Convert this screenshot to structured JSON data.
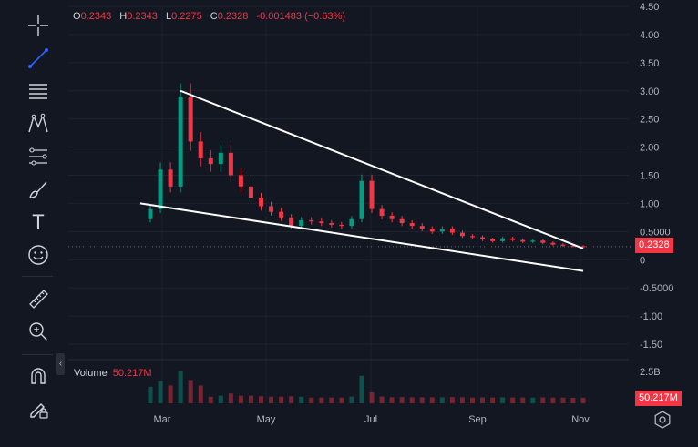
{
  "legend": {
    "open_label": "O",
    "open": "0.2343",
    "high_label": "H",
    "high": "0.2343",
    "low_label": "L",
    "low": "0.2275",
    "close_label": "C",
    "close": "0.2328",
    "change": "-0.001483 (−0.63%)"
  },
  "volume_legend": {
    "label": "Volume",
    "value": "50.217M"
  },
  "price_axis": {
    "ticks": [
      "4.50",
      "4.00",
      "3.50",
      "3.00",
      "2.50",
      "2.00",
      "1.50",
      "1.00",
      "0.5000",
      "0",
      "-0.5000",
      "-1.00",
      "-1.50"
    ]
  },
  "volume_axis": {
    "tick": "2.5B"
  },
  "time_axis": {
    "ticks": [
      "Mar",
      "May",
      "Jul",
      "Sep",
      "Nov"
    ]
  },
  "last_price_label": "0.2328",
  "last_volume_label": "50.217M",
  "toolbar": {
    "tools": [
      "crosshair-icon",
      "trend-line-icon",
      "horizontal-lines-icon",
      "pattern-icon",
      "fib-icon",
      "brush-icon",
      "text-icon",
      "emoji-icon",
      "ruler-icon",
      "zoom-in-icon",
      "magnet-icon",
      "lock-pencil-icon"
    ],
    "text_tool_glyph": "T",
    "collapse_glyph": "‹"
  },
  "chart_data": {
    "type": "candlestick",
    "y_range": [
      -1.5,
      4.5
    ],
    "series_price": [
      {
        "t": 0,
        "c": 0.9
      },
      {
        "t": 1,
        "c": 1.6
      },
      {
        "t": 2,
        "c": 1.3
      },
      {
        "t": 3,
        "c": 2.9
      },
      {
        "t": 4,
        "c": 2.1
      },
      {
        "t": 5,
        "c": 1.8
      },
      {
        "t": 6,
        "c": 1.7
      },
      {
        "t": 7,
        "c": 1.9
      },
      {
        "t": 8,
        "c": 1.5
      },
      {
        "t": 9,
        "c": 1.3
      },
      {
        "t": 10,
        "c": 1.1
      },
      {
        "t": 11,
        "c": 0.95
      },
      {
        "t": 12,
        "c": 0.85
      },
      {
        "t": 13,
        "c": 0.75
      },
      {
        "t": 14,
        "c": 0.6
      },
      {
        "t": 15,
        "c": 0.7
      },
      {
        "t": 16,
        "c": 0.68
      },
      {
        "t": 17,
        "c": 0.65
      },
      {
        "t": 18,
        "c": 0.62
      },
      {
        "t": 19,
        "c": 0.6
      },
      {
        "t": 20,
        "c": 0.72
      },
      {
        "t": 21,
        "c": 1.4
      },
      {
        "t": 22,
        "c": 0.9
      },
      {
        "t": 23,
        "c": 0.78
      },
      {
        "t": 24,
        "c": 0.72
      },
      {
        "t": 25,
        "c": 0.65
      },
      {
        "t": 26,
        "c": 0.6
      },
      {
        "t": 27,
        "c": 0.55
      },
      {
        "t": 28,
        "c": 0.5
      },
      {
        "t": 29,
        "c": 0.55
      },
      {
        "t": 30,
        "c": 0.48
      },
      {
        "t": 31,
        "c": 0.42
      },
      {
        "t": 32,
        "c": 0.4
      },
      {
        "t": 33,
        "c": 0.36
      },
      {
        "t": 34,
        "c": 0.33
      },
      {
        "t": 35,
        "c": 0.38
      },
      {
        "t": 36,
        "c": 0.35
      },
      {
        "t": 37,
        "c": 0.32
      },
      {
        "t": 38,
        "c": 0.34
      },
      {
        "t": 39,
        "c": 0.3
      },
      {
        "t": 40,
        "c": 0.27
      },
      {
        "t": 41,
        "c": 0.25
      },
      {
        "t": 42,
        "c": 0.24
      },
      {
        "t": 43,
        "c": 0.23
      }
    ],
    "trendlines": [
      {
        "name": "upper",
        "from": [
          3,
          3.0
        ],
        "to": [
          43,
          0.2
        ]
      },
      {
        "name": "lower",
        "from": [
          -1,
          1.0
        ],
        "to": [
          43,
          -0.2
        ]
      }
    ],
    "last_price": 0.2328,
    "colors": {
      "up": "#089981",
      "down": "#f23645",
      "line": "#ffffff",
      "grid": "#1e222d",
      "price_line": "#f23645"
    }
  }
}
